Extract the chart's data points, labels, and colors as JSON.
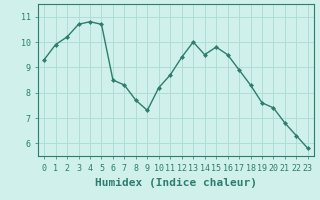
{
  "x": [
    0,
    1,
    2,
    3,
    4,
    5,
    6,
    7,
    8,
    9,
    10,
    11,
    12,
    13,
    14,
    15,
    16,
    17,
    18,
    19,
    20,
    21,
    22,
    23
  ],
  "y": [
    9.3,
    9.9,
    10.2,
    10.7,
    10.8,
    10.7,
    8.5,
    8.3,
    7.7,
    7.3,
    8.2,
    8.7,
    9.4,
    10.0,
    9.5,
    9.8,
    9.5,
    8.9,
    8.3,
    7.6,
    7.4,
    6.8,
    6.3,
    5.8
  ],
  "line_color": "#2e7d6e",
  "marker": "D",
  "marker_size": 2.0,
  "bg_color": "#cff0eb",
  "grid_color": "#b0ddd7",
  "xlabel": "Humidex (Indice chaleur)",
  "ylim": [
    5.5,
    11.5
  ],
  "xlim": [
    -0.5,
    23.5
  ],
  "yticks": [
    6,
    7,
    8,
    9,
    10,
    11
  ],
  "xticks": [
    0,
    1,
    2,
    3,
    4,
    5,
    6,
    7,
    8,
    9,
    10,
    11,
    12,
    13,
    14,
    15,
    16,
    17,
    18,
    19,
    20,
    21,
    22,
    23
  ],
  "tick_fontsize": 6,
  "xlabel_fontsize": 8,
  "linewidth": 1.0,
  "tick_color": "#2e7d6e",
  "label_color": "#2e7d6e"
}
